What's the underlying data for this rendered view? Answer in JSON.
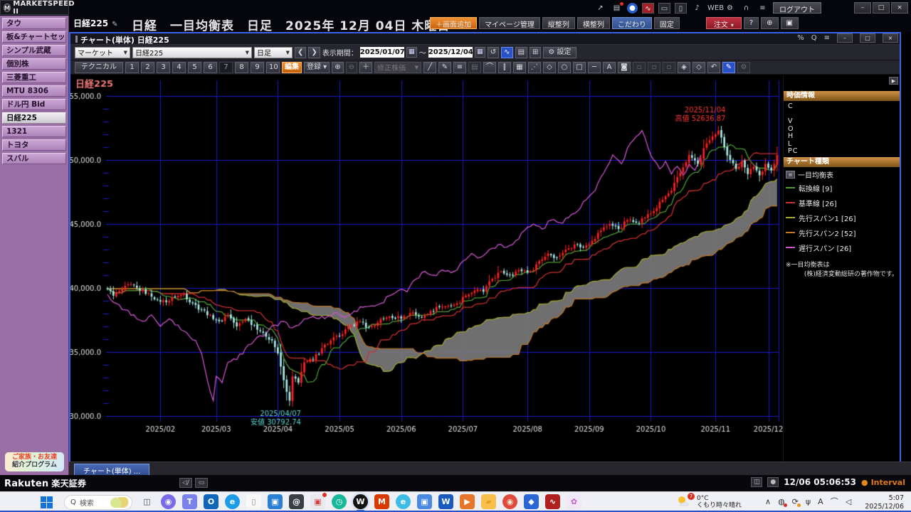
{
  "titlebar": {
    "logo": "MARKETSPEED II",
    "logo_mark": "M",
    "logout_label": "ログアウト",
    "icons": [
      {
        "name": "share-icon",
        "glyph": "↗",
        "cls": ""
      },
      {
        "name": "chat-notification-icon",
        "glyph": "▤",
        "cls": "badge"
      },
      {
        "name": "assist-icon",
        "glyph": "●",
        "cls": "blue"
      },
      {
        "name": "chart-app-icon",
        "glyph": "∿",
        "cls": "red"
      },
      {
        "name": "monitor-icon",
        "glyph": "▭",
        "cls": "boxed"
      },
      {
        "name": "document-icon",
        "glyph": "▯",
        "cls": "boxed"
      },
      {
        "name": "bell-icon",
        "glyph": "♪",
        "cls": ""
      },
      {
        "name": "web-icon",
        "glyph": "WEB",
        "cls": ""
      },
      {
        "name": "gear-sub-icon",
        "glyph": "⚙",
        "cls": ""
      },
      {
        "name": "headset-icon",
        "glyph": "∩",
        "cls": ""
      },
      {
        "name": "menu-icon",
        "glyph": "≡",
        "cls": ""
      }
    ],
    "window_controls": [
      {
        "name": "minimize-button",
        "glyph": "–"
      },
      {
        "name": "maximize-button",
        "glyph": "□"
      },
      {
        "name": "close-button",
        "glyph": "×"
      }
    ]
  },
  "header": {
    "layout_tab": "日経225",
    "edit_glyph": "✎",
    "title": "日経　一目均衡表　日足　2025年 12月 04日 木曜日",
    "buttons": [
      {
        "name": "add-screen-button",
        "label": "＋画面追加",
        "style": "orange"
      },
      {
        "name": "mypage-manage-button",
        "label": "マイページ管理",
        "style": ""
      },
      {
        "name": "vertical-align-button",
        "label": "縦整列",
        "style": ""
      },
      {
        "name": "horizontal-align-button",
        "label": "横整列",
        "style": ""
      },
      {
        "name": "kodawari-button",
        "label": "こだわり",
        "style": "blue"
      },
      {
        "name": "pin-button",
        "label": "固定",
        "style": ""
      },
      {
        "name": "order-button",
        "label": "注文",
        "style": "red",
        "caret": "▾"
      },
      {
        "name": "help-button",
        "label": "?",
        "style": ""
      },
      {
        "name": "invite-user-button",
        "label": "⊕",
        "style": ""
      },
      {
        "name": "popout-button",
        "label": "▣",
        "style": ""
      }
    ]
  },
  "sidebar": {
    "items": [
      {
        "id": "tab",
        "label": "タウ"
      },
      {
        "id": "board-chart-set",
        "label": "板&チャートセット"
      },
      {
        "id": "simple-musashi",
        "label": "シンプル武蔵"
      },
      {
        "id": "kobetsu-kabu",
        "label": "個別株"
      },
      {
        "id": "mitsubishi-heavy",
        "label": "三菱重工"
      },
      {
        "id": "mtu-8306",
        "label": "MTU  8306"
      },
      {
        "id": "usdjpy-bid",
        "label": "ドル円  Bid"
      },
      {
        "id": "nikkei225",
        "label": "日経225",
        "selected": true
      },
      {
        "id": "etf-1321",
        "label": "1321"
      },
      {
        "id": "toyota",
        "label": "トヨタ"
      },
      {
        "id": "subaru",
        "label": "スバル"
      }
    ],
    "banner_line1": "ご家族・お友達",
    "banner_line2": "紹介プログラム"
  },
  "window": {
    "title": "チャート(単体) 日経225",
    "icons": [
      {
        "name": "link-icon",
        "glyph": "%"
      },
      {
        "name": "search-icon",
        "glyph": "Q"
      },
      {
        "name": "menu-icon",
        "glyph": "≡"
      }
    ],
    "controls": [
      {
        "name": "minimize-button",
        "glyph": "–"
      },
      {
        "name": "restore-button",
        "glyph": "□"
      },
      {
        "name": "close-button",
        "glyph": "×"
      }
    ]
  },
  "toolbar1": {
    "market_select": "マーケット",
    "symbol_select": "日経225",
    "timeframe_select": "日足",
    "prev_glyph": "❮",
    "next_glyph": "❯",
    "period_label": "表示期間：",
    "date_from": "2025/01/07",
    "date_to": "2025/12/04",
    "tilde": "～",
    "calendar_glyph": "▦",
    "icons": [
      {
        "name": "reload-icon",
        "glyph": "↺",
        "cls": ""
      },
      {
        "name": "compare-chart-icon",
        "glyph": "∿",
        "cls": "blueon"
      },
      {
        "name": "print-icon",
        "glyph": "▤",
        "cls": ""
      },
      {
        "name": "new-window-icon",
        "glyph": "⊞",
        "cls": ""
      }
    ],
    "settings_glyph": "⚙",
    "settings_label": "設定"
  },
  "toolbar2": {
    "technical_label": "テクニカル",
    "numbers": [
      "1",
      "2",
      "3",
      "4",
      "5",
      "6",
      "7",
      "8",
      "9",
      "10"
    ],
    "pressed_number": "7",
    "edit_label": "編集",
    "register_label": "登録",
    "caret": "▾",
    "zoom_icons": [
      {
        "name": "zoom-in-icon",
        "glyph": "⊕",
        "cls": ""
      },
      {
        "name": "zoom-out-icon",
        "glyph": "⊖",
        "cls": "dim"
      },
      {
        "name": "crosshair-icon",
        "glyph": "＋",
        "cls": ""
      }
    ],
    "adjust_select": "修正株価",
    "tools": [
      {
        "name": "trendline-tool-icon",
        "glyph": "╱",
        "cls": ""
      },
      {
        "name": "pencil-tool-icon",
        "glyph": "✎",
        "cls": ""
      },
      {
        "name": "hline-set-tool-icon",
        "glyph": "≡",
        "cls": ""
      },
      {
        "name": "list-tool-icon",
        "glyph": "▤",
        "cls": "dim"
      },
      {
        "name": "arc-tool-icon",
        "glyph": "⌒",
        "cls": ""
      },
      {
        "name": "channel-tool-icon",
        "glyph": "∥",
        "cls": ""
      },
      {
        "name": "bars-tool-icon",
        "glyph": "▦",
        "cls": ""
      },
      {
        "name": "fan-tool-icon",
        "glyph": "⋰",
        "cls": ""
      },
      {
        "name": "polygon-tool-icon",
        "glyph": "◇",
        "cls": ""
      },
      {
        "name": "ellipse-tool-icon",
        "glyph": "○",
        "cls": ""
      },
      {
        "name": "rect-tool-icon",
        "glyph": "□",
        "cls": ""
      },
      {
        "name": "hline-tool-icon",
        "glyph": "─",
        "cls": ""
      },
      {
        "name": "text-tool-icon",
        "glyph": "A",
        "cls": ""
      },
      {
        "name": "stamp-tool-icon",
        "glyph": "◙",
        "cls": ""
      },
      {
        "name": "group-tool-icon",
        "glyph": "▫",
        "cls": "dim"
      },
      {
        "name": "copy-tool-icon",
        "glyph": "▫",
        "cls": "dim"
      },
      {
        "name": "paste-tool-icon",
        "glyph": "▫",
        "cls": "dim"
      },
      {
        "name": "eraser-tool-icon",
        "glyph": "◈",
        "cls": ""
      },
      {
        "name": "eraser-all-tool-icon",
        "glyph": "◇",
        "cls": ""
      },
      {
        "name": "undo-tool-icon",
        "glyph": "↶",
        "cls": ""
      },
      {
        "name": "draw-mode-icon",
        "glyph": "✎",
        "cls": "blueon"
      },
      {
        "name": "tool-settings-icon",
        "glyph": "⚙",
        "cls": "dim"
      }
    ]
  },
  "right_panel": {
    "expander_glyph": "▶",
    "quote_header": "時価情報",
    "quote_rows": [
      "C",
      "",
      "V",
      "O",
      "H",
      "L",
      "PC"
    ],
    "chart_type_header": "チャート種類",
    "legend_title": "一目均衡表",
    "legend_btn_glyph": "≡",
    "note1": "※一目均衡表は",
    "note2": "(株)経済変動総研の著作物です。"
  },
  "bottom": {
    "chart_tab": "チャート(単体) ...",
    "brand": "Rakuten",
    "brand_jp": "楽天証券",
    "mute_glyph": "◁/",
    "window_glyph": "▭",
    "right_icon1": "◫",
    "right_icon2": "●",
    "status_time": "12/06 05:06:53",
    "interval_label": "Interval"
  },
  "taskbar": {
    "search_placeholder": "検索",
    "ime": "A",
    "weather_temp": "0°C",
    "weather_desc": "くもり時々晴れ",
    "weather_badge": "7",
    "clock_time": "5:07",
    "clock_date": "2025/12/06",
    "icons": [
      {
        "name": "task-view-icon",
        "glyph": "◫",
        "bg": "transparent",
        "fg": "#3a4a5a"
      },
      {
        "name": "copilot-icon",
        "glyph": "◉",
        "bg": "#7a6ae8",
        "fg": "#fff",
        "round": true
      },
      {
        "name": "teams-icon",
        "glyph": "T",
        "bg": "#7b83eb",
        "fg": "#fff"
      },
      {
        "name": "outlook-icon",
        "glyph": "O",
        "bg": "#1066b8",
        "fg": "#fff"
      },
      {
        "name": "ie-icon",
        "glyph": "e",
        "bg": "#1c9ce8",
        "fg": "#fff",
        "round": true
      },
      {
        "name": "notepad-icon",
        "glyph": "▯",
        "bg": "#f8f8f8",
        "fg": "#888"
      },
      {
        "name": "store-icon",
        "glyph": "▣",
        "bg": "#2a7fd4",
        "fg": "#fff"
      },
      {
        "name": "mail-icon",
        "glyph": "@",
        "bg": "#3a3f46",
        "fg": "#fff"
      },
      {
        "name": "photos-icon",
        "glyph": "▣",
        "bg": "#e8e8f0",
        "fg": "#d84040",
        "badge": true
      },
      {
        "name": "clock-app-icon",
        "glyph": "◷",
        "bg": "#17b79a",
        "fg": "#fff",
        "round": true
      },
      {
        "name": "marketspeed-w-icon",
        "glyph": "W",
        "bg": "#141414",
        "fg": "#fff",
        "round": true,
        "active": true
      },
      {
        "name": "m365-icon",
        "glyph": "M",
        "bg": "#d83b01",
        "fg": "#fff"
      },
      {
        "name": "edge-icon",
        "glyph": "e",
        "bg": "#3dbce8",
        "fg": "#fff",
        "round": true
      },
      {
        "name": "gallery-icon",
        "glyph": "▣",
        "bg": "#4a8ae0",
        "fg": "#fff"
      },
      {
        "name": "word-icon",
        "glyph": "W",
        "bg": "#185abd",
        "fg": "#fff"
      },
      {
        "name": "media-player-icon",
        "glyph": "▶",
        "bg": "#e8762a",
        "fg": "#fff"
      },
      {
        "name": "explorer-icon",
        "glyph": "▰",
        "bg": "#f8c04a",
        "fg": "#e8a020"
      },
      {
        "name": "chrome-icon",
        "glyph": "◉",
        "bg": "#de4b3b",
        "fg": "#f8f0d0",
        "round": true
      },
      {
        "name": "wallet-icon",
        "glyph": "◆",
        "bg": "#2a66d4",
        "fg": "#fff"
      },
      {
        "name": "marketspeed2-icon",
        "glyph": "∿",
        "bg": "#b02020",
        "fg": "#fff"
      },
      {
        "name": "paint-icon",
        "glyph": "✿",
        "bg": "#f0e8f8",
        "fg": "#c060c8"
      }
    ],
    "tray": [
      {
        "name": "tray-chevron-icon",
        "glyph": "∧"
      },
      {
        "name": "tray-globe-icon",
        "glyph": "◍",
        "dot": "red"
      },
      {
        "name": "tray-sync-icon",
        "glyph": "⟳",
        "dot": "orange"
      },
      {
        "name": "tray-mic-icon",
        "glyph": "ψ"
      },
      {
        "name": "tray-ime-icon",
        "glyph": "A"
      },
      {
        "name": "tray-wifi-icon",
        "glyph": "⌒"
      },
      {
        "name": "tray-volume-icon",
        "glyph": "◁"
      }
    ]
  },
  "chart_data": {
    "type": "candlestick-ichimoku",
    "title": "日経225",
    "symbol": "日経225",
    "timeframe": "日足",
    "y_ticks": [
      30000,
      35000,
      40000,
      45000,
      50000,
      55000
    ],
    "ylim": [
      28900,
      56200
    ],
    "minor_step": 1000,
    "total_days": 229,
    "month_ticks": [
      {
        "label": "2025/02",
        "day": 18
      },
      {
        "label": "2025/03",
        "day": 37
      },
      {
        "label": "2025/04",
        "day": 58
      },
      {
        "label": "2025/05",
        "day": 79
      },
      {
        "label": "2025/06",
        "day": 100
      },
      {
        "label": "2025/07",
        "day": 121
      },
      {
        "label": "2025/08",
        "day": 143
      },
      {
        "label": "2025/09",
        "day": 164
      },
      {
        "label": "2025/10",
        "day": 185
      },
      {
        "label": "2025/11",
        "day": 207
      },
      {
        "label": "2025/12",
        "day": 225
      }
    ],
    "close_anchors": [
      [
        0,
        39900
      ],
      [
        2,
        39400
      ],
      [
        5,
        39900
      ],
      [
        8,
        40300
      ],
      [
        11,
        39800
      ],
      [
        14,
        39600
      ],
      [
        17,
        39100
      ],
      [
        20,
        38900
      ],
      [
        23,
        39300
      ],
      [
        26,
        39500
      ],
      [
        29,
        38800
      ],
      [
        32,
        38300
      ],
      [
        35,
        37900
      ],
      [
        38,
        37400
      ],
      [
        41,
        37900
      ],
      [
        44,
        37000
      ],
      [
        47,
        37600
      ],
      [
        50,
        37100
      ],
      [
        53,
        36500
      ],
      [
        56,
        35900
      ],
      [
        58,
        34900
      ],
      [
        60,
        32800
      ],
      [
        62,
        31200
      ],
      [
        63,
        33100
      ],
      [
        65,
        32600
      ],
      [
        67,
        34200
      ],
      [
        70,
        34400
      ],
      [
        73,
        35300
      ],
      [
        76,
        35900
      ],
      [
        80,
        36400
      ],
      [
        83,
        37100
      ],
      [
        86,
        37400
      ],
      [
        89,
        36900
      ],
      [
        92,
        37300
      ],
      [
        95,
        37700
      ],
      [
        98,
        37600
      ],
      [
        101,
        37800
      ],
      [
        104,
        38100
      ],
      [
        107,
        37700
      ],
      [
        110,
        38200
      ],
      [
        113,
        38500
      ],
      [
        116,
        38600
      ],
      [
        119,
        38800
      ],
      [
        122,
        39400
      ],
      [
        125,
        39800
      ],
      [
        128,
        39700
      ],
      [
        131,
        40700
      ],
      [
        134,
        41300
      ],
      [
        137,
        41000
      ],
      [
        140,
        41400
      ],
      [
        144,
        41300
      ],
      [
        147,
        42100
      ],
      [
        150,
        42700
      ],
      [
        153,
        42400
      ],
      [
        156,
        43000
      ],
      [
        159,
        43400
      ],
      [
        162,
        43200
      ],
      [
        165,
        43700
      ],
      [
        168,
        44500
      ],
      [
        171,
        45000
      ],
      [
        174,
        44600
      ],
      [
        177,
        45300
      ],
      [
        180,
        45100
      ],
      [
        183,
        45500
      ],
      [
        186,
        46000
      ],
      [
        189,
        46900
      ],
      [
        192,
        47600
      ],
      [
        195,
        49000
      ],
      [
        198,
        50400
      ],
      [
        201,
        49700
      ],
      [
        204,
        51300
      ],
      [
        207,
        52000
      ],
      [
        208,
        52300
      ],
      [
        210,
        51000
      ],
      [
        212,
        50000
      ],
      [
        214,
        49300
      ],
      [
        216,
        49900
      ],
      [
        218,
        48900
      ],
      [
        220,
        49500
      ],
      [
        222,
        48800
      ],
      [
        224,
        49700
      ],
      [
        225,
        49400
      ],
      [
        226,
        49200
      ],
      [
        227,
        49700
      ],
      [
        228,
        50400
      ]
    ],
    "low_override": {
      "62": 30792.74
    },
    "high_override": {
      "208": 52636.87
    },
    "high_annotation": {
      "date": "2025/11/04",
      "label": "高値 52636.87",
      "day": 208,
      "value": 52636.87
    },
    "low_annotation": {
      "date": "2025/04/07",
      "label": "安値 30792.74",
      "day": 62,
      "value": 30792.74
    },
    "ichimoku_periods": {
      "tenkan": 9,
      "kijun": 26,
      "spanB": 52,
      "shift": 26
    },
    "legend": [
      {
        "name": "tenkan",
        "label": "転換線 [9]",
        "color": "#4e9b35"
      },
      {
        "name": "kijun",
        "label": "基準線 [26]",
        "color": "#cc3030"
      },
      {
        "name": "spanA",
        "label": "先行スパン1 [26]",
        "color": "#a8a832"
      },
      {
        "name": "spanB",
        "label": "先行スパン2 [52]",
        "color": "#c07828"
      },
      {
        "name": "chikou",
        "label": "遅行スパン [26]",
        "color": "#cc55cc"
      }
    ],
    "colors": {
      "up_candle": "#ff2020",
      "down_candle": "#a8e8e4",
      "cloud": "rgba(126,126,126,0.88)",
      "grid": "#1818c8",
      "axis_text": "#e0e0e0",
      "title": "#f07878",
      "high_label": "#ff3838",
      "low_label": "#5fd3d3",
      "background": "#000000"
    }
  }
}
